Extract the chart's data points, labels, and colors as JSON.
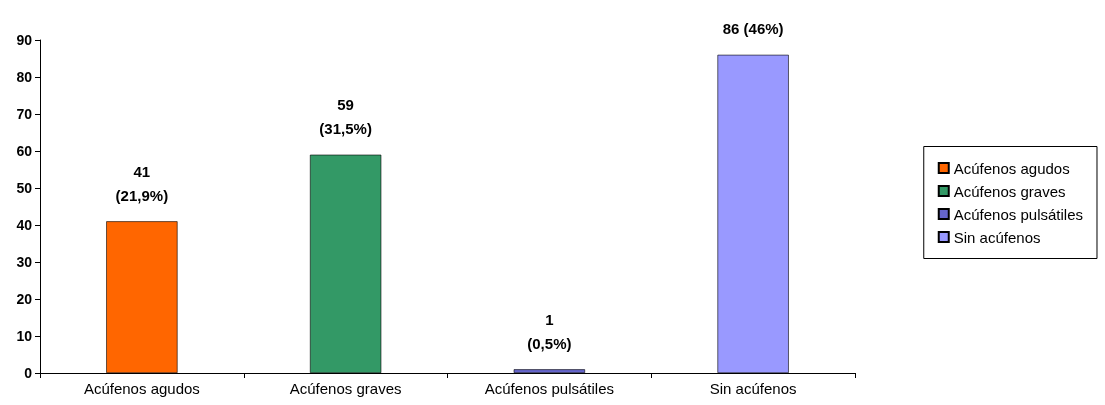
{
  "chart_data": {
    "type": "bar",
    "categories": [
      "Acúfenos agudos",
      "Acúfenos graves",
      "Acúfenos pulsátiles",
      "Sin acúfenos"
    ],
    "series": [
      {
        "name": "Acúfenos agudos",
        "color": "#ff6600",
        "values": [
          41,
          null,
          null,
          null
        ],
        "value_labels": [
          "41\n(21,9%)",
          null,
          null,
          null
        ]
      },
      {
        "name": "Acúfenos graves",
        "color": "#339966",
        "values": [
          null,
          59,
          null,
          null
        ],
        "value_labels": [
          null,
          "59\n(31,5%)",
          null,
          null
        ]
      },
      {
        "name": "Acúfenos pulsátiles",
        "color": "#6666cc",
        "values": [
          null,
          null,
          1,
          null
        ],
        "value_labels": [
          null,
          null,
          "1\n(0,5%)",
          null
        ]
      },
      {
        "name": "Sin acúfenos",
        "color": "#9999ff",
        "values": [
          null,
          null,
          null,
          86
        ],
        "value_labels": [
          null,
          null,
          null,
          "86 (46%)"
        ]
      }
    ],
    "stacked": true,
    "ylim": [
      0,
      90
    ],
    "yticks": [
      0,
      10,
      20,
      30,
      40,
      50,
      60,
      70,
      80,
      90
    ],
    "grid": false,
    "legend": "right"
  }
}
